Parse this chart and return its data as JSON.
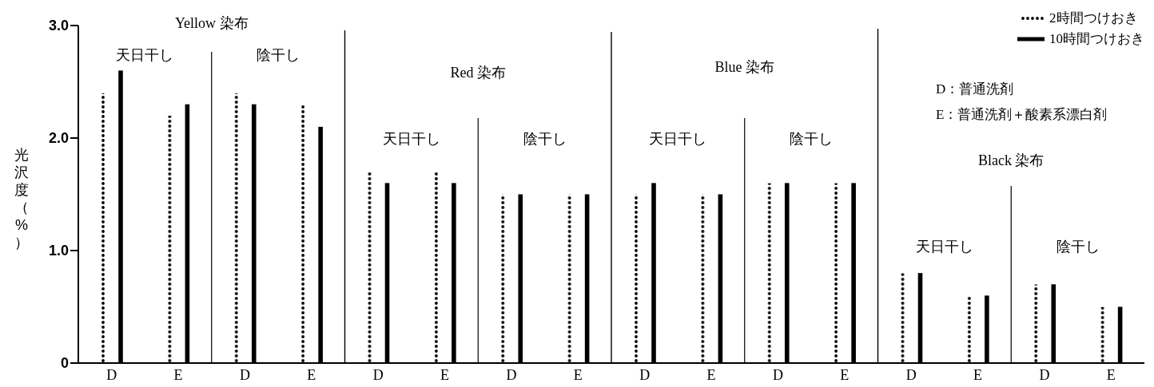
{
  "chart_data": {
    "type": "bar",
    "ylabel": "光沢度（%）",
    "categories": [
      "D",
      "E",
      "D",
      "E",
      "D",
      "E",
      "D",
      "E",
      "D",
      "E",
      "D",
      "E",
      "D",
      "E",
      "D",
      "E"
    ],
    "series": [
      {
        "name": "2時間つけおき",
        "color": "#000000",
        "line_style": "dotted",
        "values": [
          2.4,
          2.2,
          2.4,
          2.3,
          1.7,
          1.7,
          1.5,
          1.5,
          1.5,
          1.5,
          1.6,
          1.6,
          0.8,
          0.6,
          0.7,
          0.5
        ]
      },
      {
        "name": "10時間つけおき",
        "color": "#000000",
        "line_style": "solid",
        "values": [
          2.6,
          2.3,
          2.3,
          2.1,
          1.6,
          1.6,
          1.5,
          1.5,
          1.6,
          1.5,
          1.6,
          1.6,
          0.8,
          0.6,
          0.7,
          0.5
        ]
      }
    ],
    "ylim": [
      0,
      3.0
    ],
    "yticks": [
      0,
      {
        "value": 1,
        "label": "1.0"
      },
      {
        "value": 2,
        "label": "2.0"
      },
      {
        "value": 3,
        "label": "3.0"
      }
    ],
    "grid": false,
    "legend": "top right",
    "annotations": [
      "Yellow 染布",
      "天日干し",
      "陰干し",
      "Red 染布",
      "天日干し",
      "陰干し",
      "Blue 染布",
      "天日干し",
      "陰干し",
      "Black 染布",
      "天日干し",
      "陰干し",
      "D：普通洗剤",
      "E：普通洗剤＋酸素系漂白剤"
    ]
  }
}
